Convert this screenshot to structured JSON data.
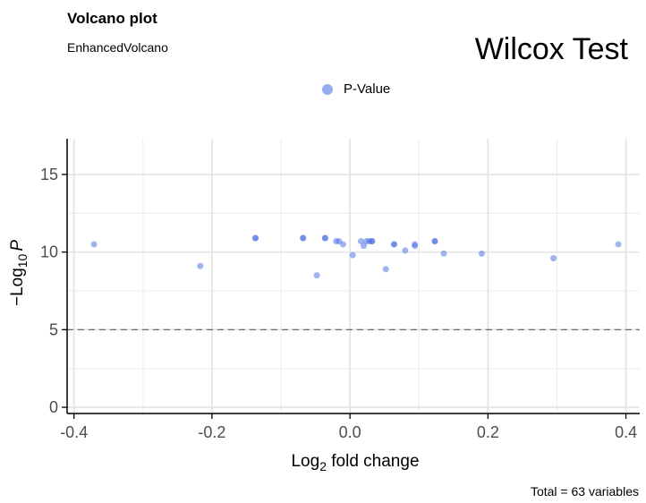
{
  "header": {
    "title": "Volcano plot",
    "subtitle": "EnhancedVolcano",
    "plot_title": "Wilcox Test"
  },
  "caption": "Total = 63 variables",
  "chart_data": {
    "type": "scatter",
    "title": "Wilcox Test",
    "xlabel_main": "Log",
    "xlabel_sub": "2",
    "xlabel_rest": " fold change",
    "ylabel_pre": "−Log",
    "ylabel_sub": "10",
    "ylabel_var": "P",
    "x_ticks": [
      "-0.4",
      "-0.2",
      "0.0",
      "0.2",
      "0.4"
    ],
    "y_ticks": [
      "0",
      "5",
      "10",
      "15"
    ],
    "xlim": [
      -0.41,
      0.42
    ],
    "ylim": [
      -0.4,
      17.3
    ],
    "grid": true,
    "legend_position": "top-center",
    "p_cutoff_line": 5,
    "series": [
      {
        "name": "P-Value",
        "color": "#4169E1",
        "points": [
          {
            "x": -0.371,
            "y": 10.5
          },
          {
            "x": -0.217,
            "y": 9.1
          },
          {
            "x": -0.137,
            "y": 10.9
          },
          {
            "x": -0.137,
            "y": 10.9
          },
          {
            "x": -0.068,
            "y": 10.9
          },
          {
            "x": -0.068,
            "y": 10.9
          },
          {
            "x": -0.048,
            "y": 8.5
          },
          {
            "x": -0.036,
            "y": 10.9
          },
          {
            "x": -0.036,
            "y": 10.9
          },
          {
            "x": -0.02,
            "y": 10.7
          },
          {
            "x": -0.016,
            "y": 10.7
          },
          {
            "x": -0.01,
            "y": 10.5
          },
          {
            "x": 0.004,
            "y": 9.8
          },
          {
            "x": 0.016,
            "y": 10.7
          },
          {
            "x": 0.02,
            "y": 10.4
          },
          {
            "x": 0.024,
            "y": 10.7
          },
          {
            "x": 0.028,
            "y": 10.7
          },
          {
            "x": 0.032,
            "y": 10.7
          },
          {
            "x": 0.032,
            "y": 10.7
          },
          {
            "x": 0.052,
            "y": 8.9
          },
          {
            "x": 0.064,
            "y": 10.5
          },
          {
            "x": 0.064,
            "y": 10.5
          },
          {
            "x": 0.08,
            "y": 10.1
          },
          {
            "x": 0.094,
            "y": 10.4
          },
          {
            "x": 0.094,
            "y": 10.5
          },
          {
            "x": 0.123,
            "y": 10.7
          },
          {
            "x": 0.123,
            "y": 10.7
          },
          {
            "x": 0.136,
            "y": 9.9
          },
          {
            "x": 0.191,
            "y": 9.9
          },
          {
            "x": 0.295,
            "y": 9.6
          },
          {
            "x": 0.389,
            "y": 10.5
          }
        ]
      }
    ]
  }
}
